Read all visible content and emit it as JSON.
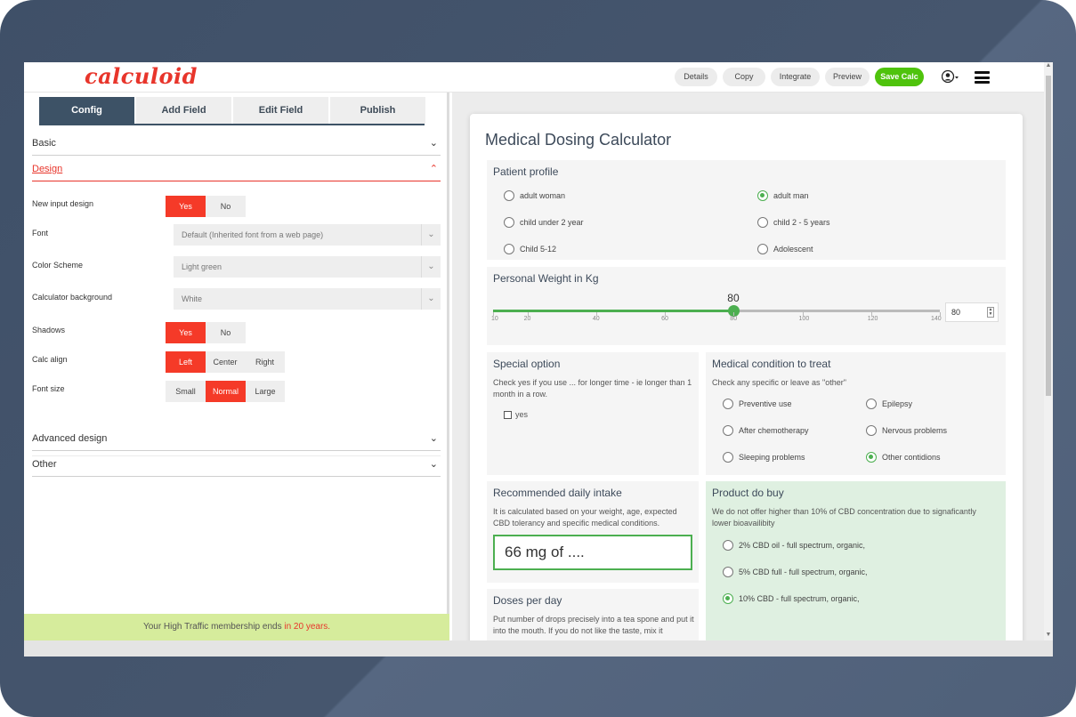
{
  "app": {
    "logo": "calculoid",
    "buttons": {
      "details": "Details",
      "copy": "Copy",
      "integrate": "Integrate",
      "preview": "Preview",
      "save": "Save Calc"
    }
  },
  "left": {
    "tabs": [
      "Config",
      "Add Field",
      "Edit Field",
      "Publish"
    ],
    "sections": {
      "basic": "Basic",
      "design": "Design",
      "advanced": "Advanced design",
      "other": "Other"
    },
    "fields": {
      "new_input_design": {
        "label": "New input design",
        "options": [
          "Yes",
          "No"
        ],
        "selected": "Yes"
      },
      "font": {
        "label": "Font",
        "value": "Default (Inherited font from a web page)"
      },
      "color_scheme": {
        "label": "Color Scheme",
        "value": "Light green"
      },
      "calc_background": {
        "label": "Calculator background",
        "value": "White"
      },
      "shadows": {
        "label": "Shadows",
        "options": [
          "Yes",
          "No"
        ],
        "selected": "Yes"
      },
      "calc_align": {
        "label": "Calc align",
        "options": [
          "Left",
          "Center",
          "Right"
        ],
        "selected": "Left"
      },
      "font_size": {
        "label": "Font size",
        "options": [
          "Small",
          "Normal",
          "Large"
        ],
        "selected": "Normal"
      }
    },
    "membership": {
      "text": "Your High Traffic membership ends ",
      "highlight": "in 20 years."
    }
  },
  "calculator": {
    "title": "Medical Dosing Calculator",
    "patient_profile": {
      "title": "Patient profile",
      "options": [
        "adult woman",
        "adult man",
        "child under 2 year",
        "child 2 - 5 years",
        "Child 5-12",
        "Adolescent"
      ],
      "selected": "adult man"
    },
    "weight": {
      "title": "Personal Weight in Kg",
      "value": "80",
      "min": 10,
      "max": 140,
      "current": 80,
      "ticks": [
        "10",
        "20",
        "40",
        "60",
        "80",
        "100",
        "120",
        "140"
      ]
    },
    "special_option": {
      "title": "Special option",
      "description": "Check yes if you use ... for longer time - ie longer than 1 month in a row.",
      "checkbox_label": "yes"
    },
    "medical_condition": {
      "title": "Medical condition to treat",
      "description": "Check any specific or leave as \"other\"",
      "options": [
        "Preventive use",
        "Epilepsy",
        "After chemotherapy",
        "Nervous problems",
        "Sleeping problems",
        "Other contidions"
      ],
      "selected": "Other contidions"
    },
    "daily_intake": {
      "title": "Recommended daily intake",
      "description": "It is calculated based on your weight, age, expected CBD tolerancy and specific medical conditions.",
      "result": "66 mg of ...."
    },
    "product": {
      "title": "Product do buy",
      "description": "We do not offer higher than 10% of CBD concentration due to signaficantly lower bioavailibity",
      "options": [
        "2% CBD oil - full spectrum, organic,",
        "5% CBD full - full spectrum, organic,",
        "10% CBD - full spectrum, organic,"
      ],
      "selected": "10% CBD - full spectrum, organic,"
    },
    "doses": {
      "title": "Doses per day",
      "description": "Put number of drops precisely into a tea spone and put it into the mouth. If you do not like the taste, mix it"
    }
  }
}
